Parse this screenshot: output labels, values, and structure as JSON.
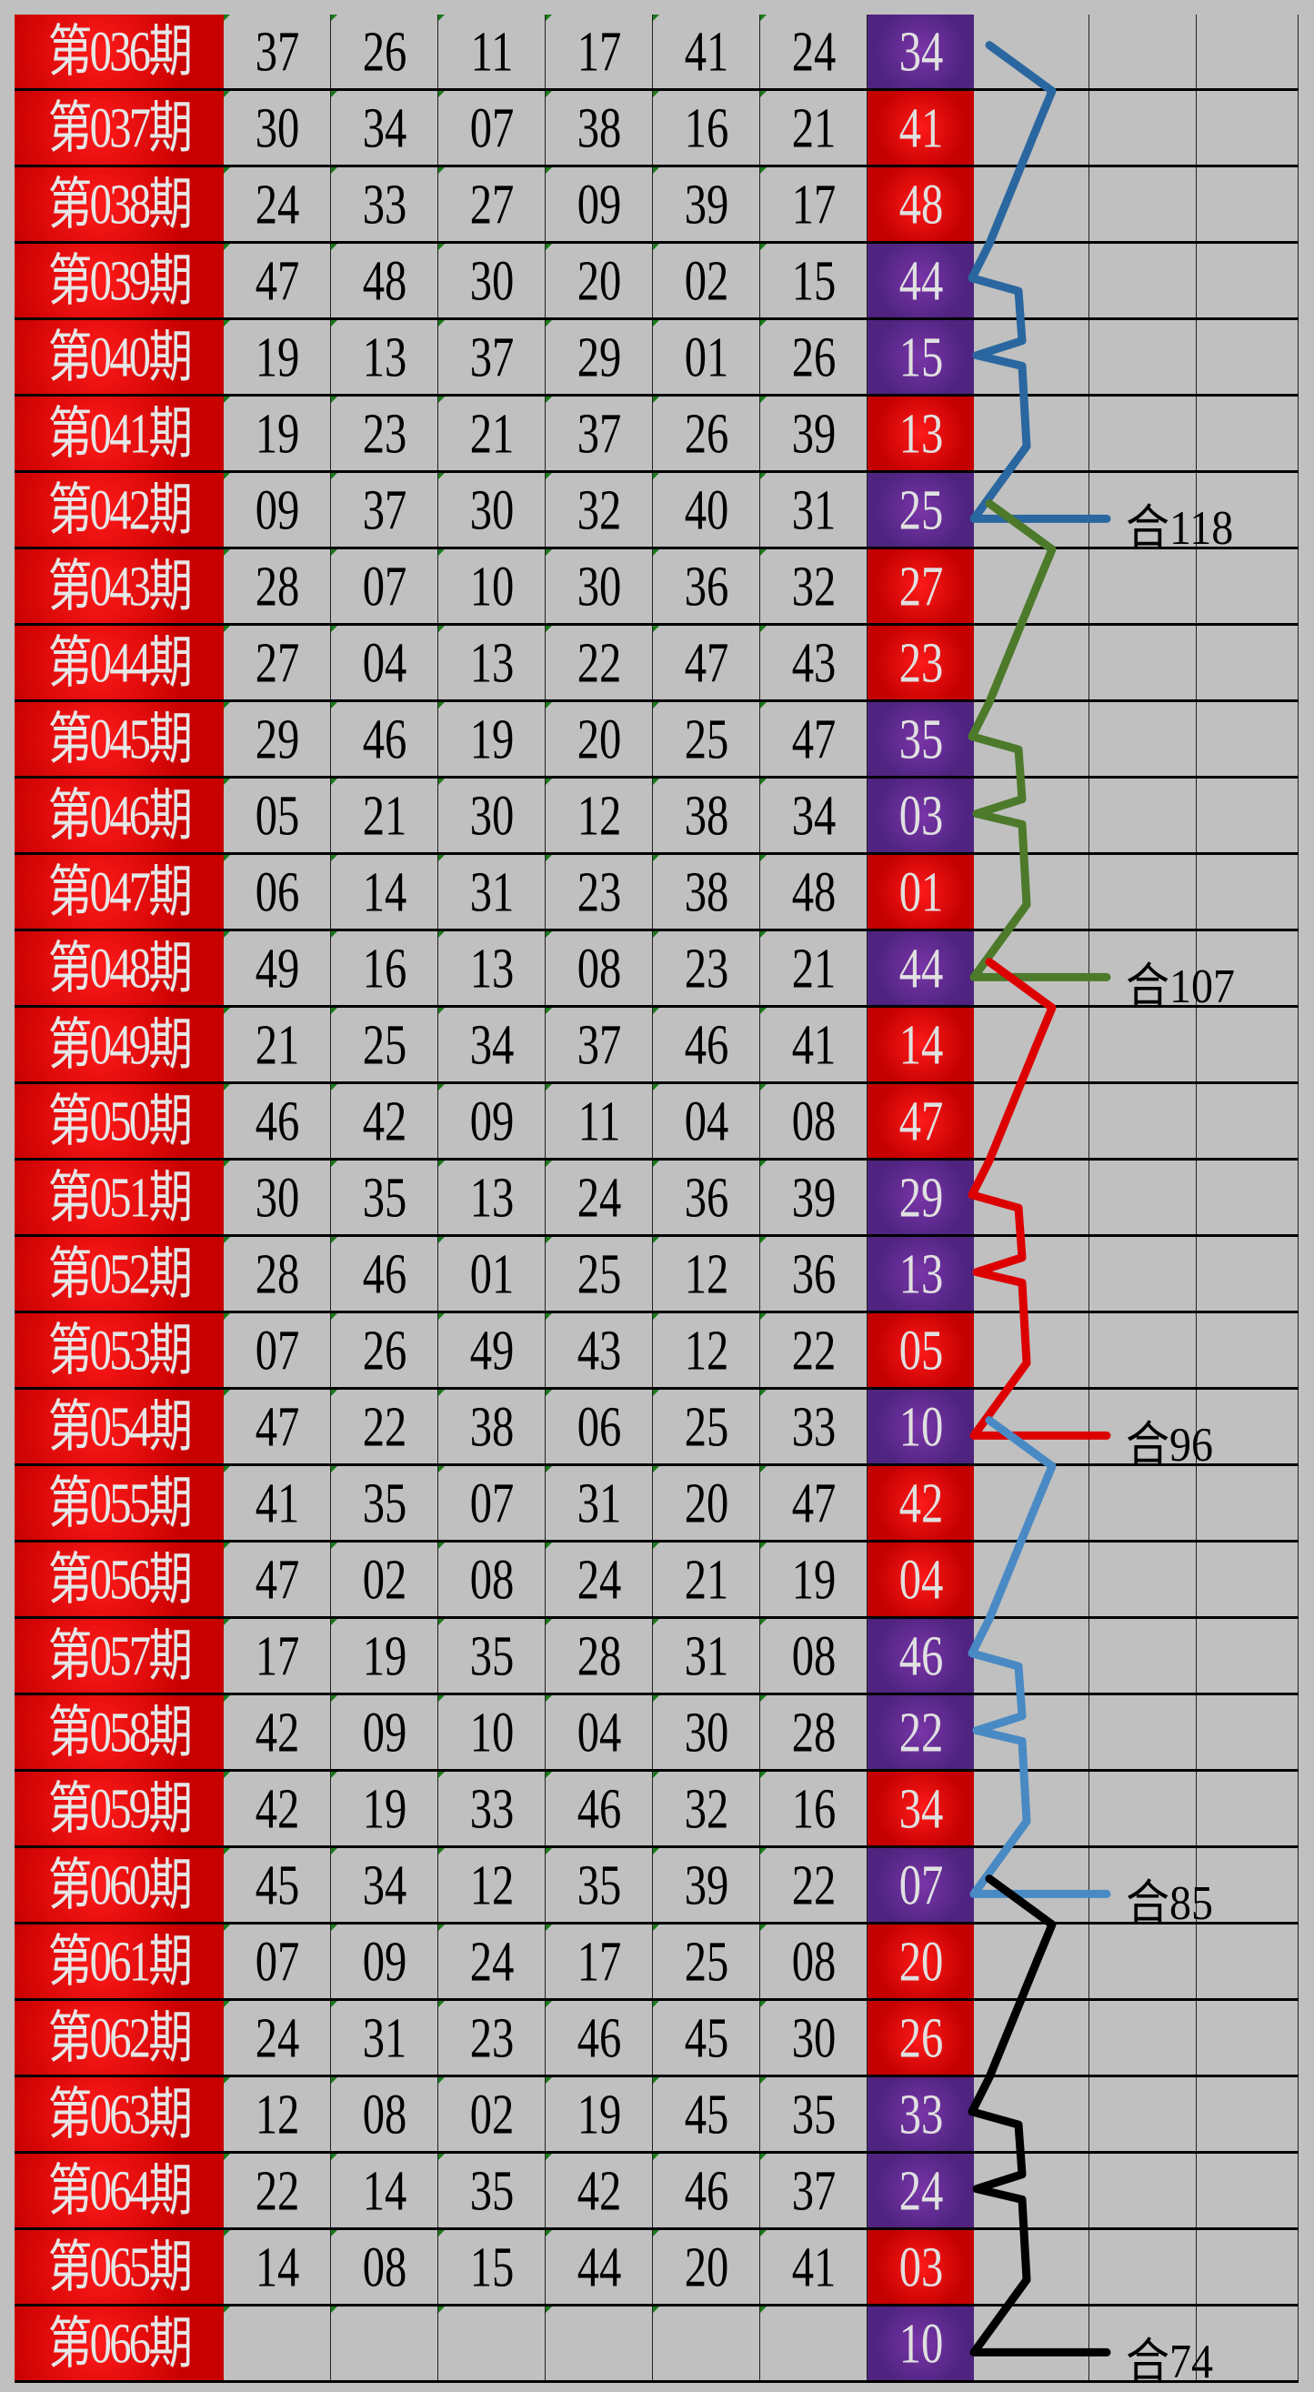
{
  "colors": {
    "red": "#cc0000",
    "purple": "#5a2a8a"
  },
  "rows": [
    {
      "period": "第036期",
      "numbers": [
        "37",
        "26",
        "11",
        "17",
        "41",
        "24"
      ],
      "special": "34",
      "special_color": "purple"
    },
    {
      "period": "第037期",
      "numbers": [
        "30",
        "34",
        "07",
        "38",
        "16",
        "21"
      ],
      "special": "41",
      "special_color": "red"
    },
    {
      "period": "第038期",
      "numbers": [
        "24",
        "33",
        "27",
        "09",
        "39",
        "17"
      ],
      "special": "48",
      "special_color": "red"
    },
    {
      "period": "第039期",
      "numbers": [
        "47",
        "48",
        "30",
        "20",
        "02",
        "15"
      ],
      "special": "44",
      "special_color": "purple"
    },
    {
      "period": "第040期",
      "numbers": [
        "19",
        "13",
        "37",
        "29",
        "01",
        "26"
      ],
      "special": "15",
      "special_color": "purple"
    },
    {
      "period": "第041期",
      "numbers": [
        "19",
        "23",
        "21",
        "37",
        "26",
        "39"
      ],
      "special": "13",
      "special_color": "red"
    },
    {
      "period": "第042期",
      "numbers": [
        "09",
        "37",
        "30",
        "32",
        "40",
        "31"
      ],
      "special": "25",
      "special_color": "purple"
    },
    {
      "period": "第043期",
      "numbers": [
        "28",
        "07",
        "10",
        "30",
        "36",
        "32"
      ],
      "special": "27",
      "special_color": "red"
    },
    {
      "period": "第044期",
      "numbers": [
        "27",
        "04",
        "13",
        "22",
        "47",
        "43"
      ],
      "special": "23",
      "special_color": "red"
    },
    {
      "period": "第045期",
      "numbers": [
        "29",
        "46",
        "19",
        "20",
        "25",
        "47"
      ],
      "special": "35",
      "special_color": "purple"
    },
    {
      "period": "第046期",
      "numbers": [
        "05",
        "21",
        "30",
        "12",
        "38",
        "34"
      ],
      "special": "03",
      "special_color": "purple"
    },
    {
      "period": "第047期",
      "numbers": [
        "06",
        "14",
        "31",
        "23",
        "38",
        "48"
      ],
      "special": "01",
      "special_color": "red"
    },
    {
      "period": "第048期",
      "numbers": [
        "49",
        "16",
        "13",
        "08",
        "23",
        "21"
      ],
      "special": "44",
      "special_color": "purple"
    },
    {
      "period": "第049期",
      "numbers": [
        "21",
        "25",
        "34",
        "37",
        "46",
        "41"
      ],
      "special": "14",
      "special_color": "red"
    },
    {
      "period": "第050期",
      "numbers": [
        "46",
        "42",
        "09",
        "11",
        "04",
        "08"
      ],
      "special": "47",
      "special_color": "red"
    },
    {
      "period": "第051期",
      "numbers": [
        "30",
        "35",
        "13",
        "24",
        "36",
        "39"
      ],
      "special": "29",
      "special_color": "purple"
    },
    {
      "period": "第052期",
      "numbers": [
        "28",
        "46",
        "01",
        "25",
        "12",
        "36"
      ],
      "special": "13",
      "special_color": "purple"
    },
    {
      "period": "第053期",
      "numbers": [
        "07",
        "26",
        "49",
        "43",
        "12",
        "22"
      ],
      "special": "05",
      "special_color": "red"
    },
    {
      "period": "第054期",
      "numbers": [
        "47",
        "22",
        "38",
        "06",
        "25",
        "33"
      ],
      "special": "10",
      "special_color": "purple"
    },
    {
      "period": "第055期",
      "numbers": [
        "41",
        "35",
        "07",
        "31",
        "20",
        "47"
      ],
      "special": "42",
      "special_color": "red"
    },
    {
      "period": "第056期",
      "numbers": [
        "47",
        "02",
        "08",
        "24",
        "21",
        "19"
      ],
      "special": "04",
      "special_color": "red"
    },
    {
      "period": "第057期",
      "numbers": [
        "17",
        "19",
        "35",
        "28",
        "31",
        "08"
      ],
      "special": "46",
      "special_color": "purple"
    },
    {
      "period": "第058期",
      "numbers": [
        "42",
        "09",
        "10",
        "04",
        "30",
        "28"
      ],
      "special": "22",
      "special_color": "purple"
    },
    {
      "period": "第059期",
      "numbers": [
        "42",
        "19",
        "33",
        "46",
        "32",
        "16"
      ],
      "special": "34",
      "special_color": "red"
    },
    {
      "period": "第060期",
      "numbers": [
        "45",
        "34",
        "12",
        "35",
        "39",
        "22"
      ],
      "special": "07",
      "special_color": "purple"
    },
    {
      "period": "第061期",
      "numbers": [
        "07",
        "09",
        "24",
        "17",
        "25",
        "08"
      ],
      "special": "20",
      "special_color": "red"
    },
    {
      "period": "第062期",
      "numbers": [
        "24",
        "31",
        "23",
        "46",
        "45",
        "30"
      ],
      "special": "26",
      "special_color": "red"
    },
    {
      "period": "第063期",
      "numbers": [
        "12",
        "08",
        "02",
        "19",
        "45",
        "35"
      ],
      "special": "33",
      "special_color": "purple"
    },
    {
      "period": "第064期",
      "numbers": [
        "22",
        "14",
        "35",
        "42",
        "46",
        "37"
      ],
      "special": "24",
      "special_color": "purple"
    },
    {
      "period": "第065期",
      "numbers": [
        "14",
        "08",
        "15",
        "44",
        "20",
        "41"
      ],
      "special": "03",
      "special_color": "red"
    },
    {
      "period": "第066期",
      "numbers": [
        "",
        "",
        "",
        "",
        "",
        ""
      ],
      "special": "10",
      "special_color": "purple"
    }
  ],
  "segments": [
    {
      "label": "合118",
      "color": "#2a67a0",
      "start_period": "第036期",
      "end_period": "第042期"
    },
    {
      "label": "合107",
      "color": "#4c7a2a",
      "start_period": "第042期",
      "end_period": "第048期"
    },
    {
      "label": "合96",
      "color": "#dd0000",
      "start_period": "第048期",
      "end_period": "第054期"
    },
    {
      "label": "合85",
      "color": "#4a8ac4",
      "start_period": "第054期",
      "end_period": "第060期"
    },
    {
      "label": "合74",
      "color": "#000000",
      "start_period": "第060期",
      "end_period": "第066期"
    }
  ]
}
